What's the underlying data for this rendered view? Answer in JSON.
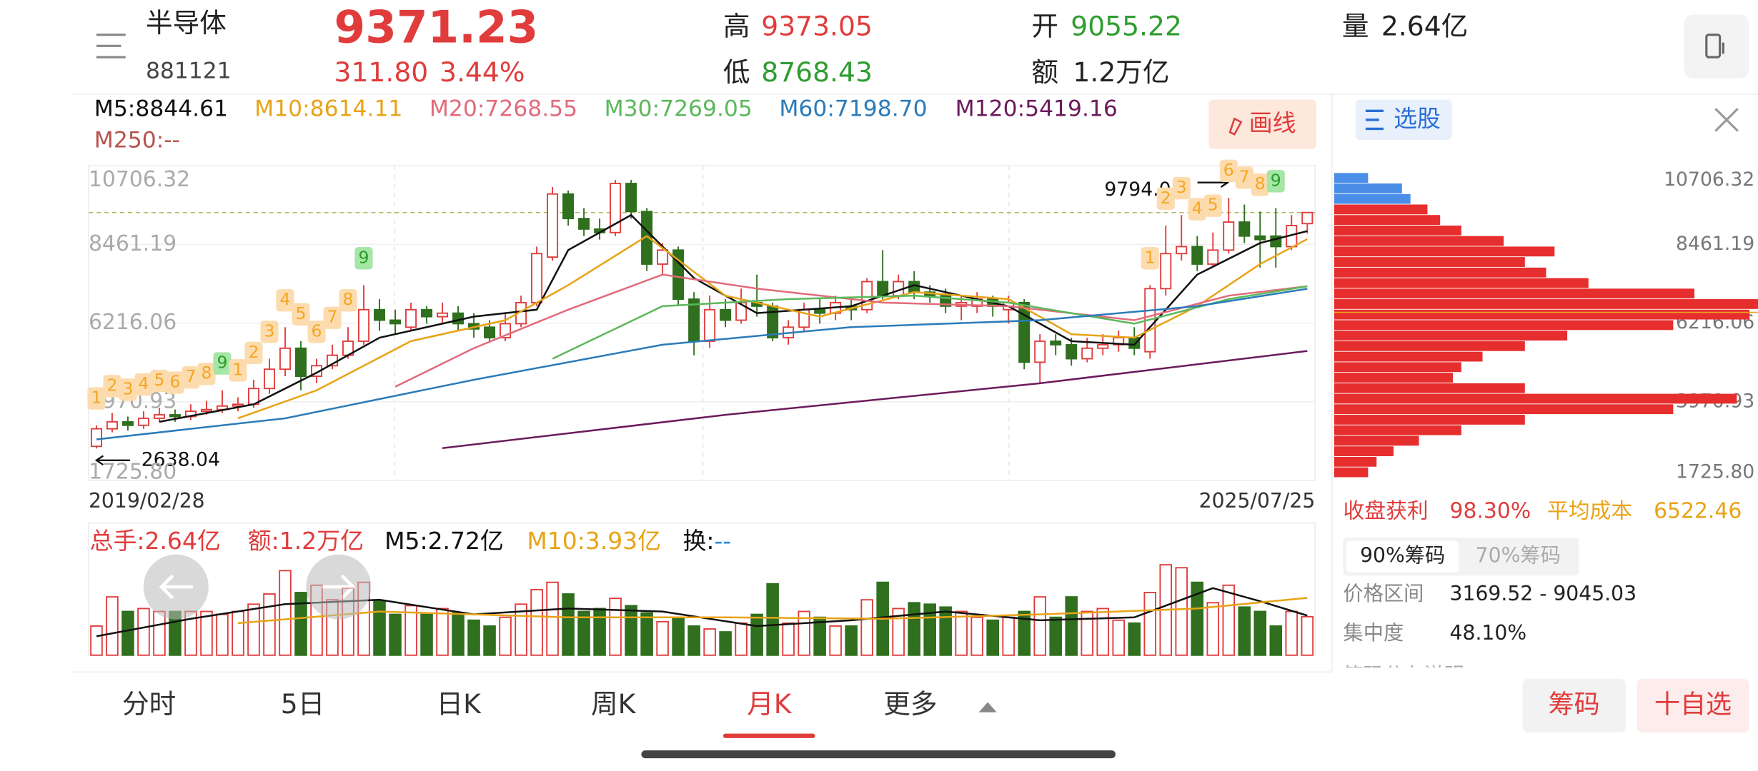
{
  "header": {
    "name": "半导体",
    "code": "881121",
    "price": 9371.23,
    "change": "311.80",
    "change_pct": "3.44%",
    "high_label": "高",
    "high": 9373.05,
    "low_label": "低",
    "low": 8768.43,
    "open_label": "开",
    "open": 9055.22,
    "amount_label": "额",
    "amount": "1.2万亿",
    "volume_label": "量",
    "volume": "2.64亿"
  },
  "toolbar": {
    "draw": "画线"
  },
  "chart_data": {
    "type": "candlestick",
    "categories": [
      "2019/02/28",
      null,
      null,
      null,
      null,
      null,
      null,
      null,
      null,
      null,
      null,
      null,
      null,
      null,
      null,
      null,
      null,
      null,
      null,
      null,
      null,
      null,
      null,
      null,
      null,
      null,
      null,
      null,
      null,
      null,
      null,
      null,
      null,
      null,
      null,
      null,
      null,
      null,
      null,
      null,
      null,
      null,
      null,
      null,
      null,
      null,
      null,
      null,
      null,
      null,
      null,
      null,
      null,
      null,
      null,
      null,
      null,
      null,
      null,
      null,
      null,
      null,
      null,
      null,
      null,
      null,
      null,
      null,
      null,
      null,
      null,
      null,
      null,
      null,
      null,
      null,
      null,
      "2025/07/25"
    ],
    "ylim": [
      1725.8,
      10706.32
    ],
    "yticks": [
      {
        "value": 1725.8,
        "label": "1725.80"
      },
      3970.93,
      6216.06,
      8461.19,
      10706.32
    ],
    "up_color": "#e03c3c",
    "down_color": "#2f6f1e",
    "candles": {
      "open": [
        2700,
        3200,
        3400,
        3300,
        3500,
        3600,
        3550,
        3700,
        3750,
        3850,
        3900,
        4350,
        4900,
        5500,
        4700,
        5000,
        5300,
        5700,
        6600,
        6300,
        6100,
        6600,
        6400,
        6500,
        6200,
        6100,
        5800,
        6200,
        6800,
        8100,
        9900,
        9200,
        8900,
        8800,
        10200,
        9400,
        7900,
        8300,
        6900,
        5700,
        6600,
        6300,
        6800,
        6700,
        5800,
        6100,
        6600,
        6500,
        6700,
        6600,
        7400,
        7000,
        7400,
        7100,
        7000,
        6700,
        6700,
        6900,
        6600,
        6800,
        5100,
        5700,
        5600,
        5200,
        5500,
        5600,
        5800,
        5400,
        7200,
        8200,
        8400,
        7900,
        8300,
        9100,
        8700,
        8700,
        8400,
        9055.22
      ],
      "close": [
        3200,
        3400,
        3300,
        3500,
        3600,
        3550,
        3700,
        3750,
        3850,
        3900,
        4350,
        4900,
        5500,
        4700,
        5000,
        5300,
        5700,
        6600,
        6300,
        6200,
        6600,
        6400,
        6500,
        6200,
        6050,
        5800,
        6200,
        6800,
        8200,
        9900,
        9200,
        8900,
        8800,
        10200,
        9400,
        7900,
        8300,
        6900,
        5700,
        6600,
        6300,
        6800,
        6700,
        5800,
        6100,
        6600,
        6500,
        6800,
        6600,
        7400,
        7000,
        7400,
        7100,
        7000,
        6700,
        6800,
        6900,
        6700,
        6800,
        5100,
        5700,
        5600,
        5200,
        5500,
        5600,
        5800,
        5500,
        7200,
        8200,
        8400,
        7900,
        8300,
        9100,
        8700,
        8600,
        8400,
        9000,
        9371.23
      ],
      "high": [
        3300,
        3650,
        3550,
        3700,
        3800,
        3750,
        3900,
        4000,
        4300,
        4100,
        4600,
        5200,
        6100,
        5700,
        5200,
        5600,
        6100,
        7300,
        6900,
        6600,
        6800,
        6700,
        6800,
        6700,
        6500,
        6300,
        6500,
        7000,
        8400,
        10100,
        10000,
        9500,
        9200,
        10300,
        10300,
        9500,
        8500,
        8400,
        7100,
        7000,
        6900,
        7200,
        7600,
        6800,
        6300,
        6800,
        6900,
        7000,
        6900,
        7500,
        8300,
        7600,
        7700,
        7300,
        7200,
        7000,
        7100,
        7000,
        7000,
        6900,
        5900,
        5900,
        5800,
        5800,
        5900,
        6000,
        6100,
        7300,
        9000,
        9300,
        8700,
        8800,
        9794.08,
        9600,
        9400,
        9500,
        9300,
        9373.05
      ],
      "low": [
        2638.04,
        3100,
        3150,
        3200,
        3400,
        3400,
        3450,
        3600,
        3650,
        3700,
        3800,
        4200,
        4700,
        4300,
        4500,
        4900,
        5200,
        5600,
        6000,
        5900,
        6000,
        6200,
        6200,
        6000,
        5800,
        5700,
        5700,
        6100,
        6700,
        8000,
        9000,
        8700,
        8600,
        8700,
        9200,
        7700,
        7600,
        6700,
        5300,
        5500,
        6100,
        6200,
        6400,
        5700,
        5600,
        6000,
        6200,
        6300,
        6300,
        6500,
        6900,
        6900,
        6900,
        6800,
        6500,
        6300,
        6500,
        6400,
        6200,
        4900,
        4500,
        5300,
        5000,
        5100,
        5300,
        5400,
        5300,
        5200,
        7000,
        8000,
        7700,
        7800,
        8200,
        8500,
        7800,
        7800,
        8300,
        8768.43
      ]
    },
    "td_labels": [
      "1",
      "2",
      "3",
      "4",
      "5",
      "6",
      "7",
      "8",
      "9",
      "1",
      "2",
      "3",
      "4",
      "5",
      "6",
      "7",
      "8",
      "9",
      null,
      null,
      null,
      null,
      null,
      null,
      null,
      null,
      null,
      null,
      null,
      null,
      null,
      null,
      null,
      null,
      null,
      null,
      null,
      null,
      null,
      null,
      null,
      null,
      null,
      null,
      null,
      null,
      null,
      null,
      null,
      null,
      null,
      null,
      null,
      null,
      null,
      null,
      null,
      null,
      null,
      null,
      null,
      null,
      null,
      null,
      null,
      null,
      null,
      "1",
      "2",
      "3",
      "4",
      "5",
      "6",
      "7",
      "8",
      "9",
      null,
      null
    ],
    "ma_lines": [
      {
        "label": "M5:8844.61",
        "color": "#111111",
        "x": [
          4,
          10,
          14,
          18,
          24,
          28,
          30,
          34,
          38,
          42,
          48,
          52,
          58,
          62,
          66,
          70,
          74,
          77
        ],
        "values": [
          3400,
          3900,
          4800,
          5800,
          6400,
          6600,
          8300,
          9300,
          7500,
          6500,
          6700,
          7300,
          6700,
          5700,
          5600,
          7600,
          8500,
          8844.61
        ]
      },
      {
        "label": "M10:8614.11",
        "color": "#e8a317",
        "x": [
          9,
          14,
          20,
          26,
          30,
          35,
          40,
          46,
          52,
          58,
          62,
          66,
          70,
          74,
          77
        ],
        "values": [
          3500,
          4300,
          5700,
          6300,
          7300,
          8700,
          7000,
          6400,
          7100,
          6900,
          5900,
          5800,
          6700,
          7900,
          8614.11
        ]
      },
      {
        "label": "M20:7268.55",
        "color": "#e26b7b",
        "x": [
          19,
          24,
          30,
          36,
          42,
          50,
          58,
          66,
          72,
          77
        ],
        "values": [
          4400,
          5500,
          6600,
          7600,
          7200,
          6800,
          6700,
          6300,
          7000,
          7268.55
        ]
      },
      {
        "label": "M30:7269.05",
        "color": "#5cb85c",
        "x": [
          29,
          36,
          44,
          52,
          58,
          66,
          72,
          77
        ],
        "values": [
          5200,
          6700,
          6900,
          7000,
          6800,
          6200,
          6900,
          7269.05
        ]
      },
      {
        "label": "M60:7198.70",
        "color": "#2b7bb9",
        "x": [
          0,
          12,
          24,
          36,
          48,
          60,
          70,
          77
        ],
        "values": [
          2900,
          3500,
          4600,
          5600,
          6100,
          6300,
          6700,
          7198.7
        ]
      },
      {
        "label": "M120:5419.16",
        "color": "#6b1b5c",
        "x": [
          22,
          40,
          60,
          77
        ],
        "values": [
          2650,
          3600,
          4500,
          5419.16
        ]
      }
    ],
    "ma_extra": {
      "label": "M250:--",
      "color": "#b85450"
    },
    "volume": {
      "ylim": [
        0,
        6.3
      ],
      "values": [
        2.0,
        4.0,
        3.0,
        3.2,
        3.0,
        3.0,
        3.0,
        3.0,
        2.8,
        3.0,
        3.5,
        4.2,
        5.8,
        4.3,
        4.8,
        3.8,
        4.6,
        5.0,
        3.7,
        2.8,
        3.4,
        2.8,
        3.2,
        2.9,
        2.4,
        2.0,
        2.6,
        3.5,
        4.5,
        5.0,
        4.2,
        3.0,
        3.2,
        3.9,
        3.4,
        2.9,
        2.3,
        2.6,
        2.0,
        1.8,
        1.6,
        2.2,
        2.8,
        4.9,
        2.2,
        3.0,
        2.6,
        2.0,
        2.0,
        3.8,
        5.0,
        3.2,
        3.6,
        3.5,
        3.3,
        3.0,
        2.6,
        2.4,
        2.6,
        3.0,
        4.0,
        2.6,
        4.0,
        3.0,
        3.2,
        2.4,
        2.2,
        4.3,
        6.2,
        6.0,
        5.0,
        3.6,
        4.8,
        3.3,
        3.0,
        2.0,
        3.0,
        2.64
      ],
      "legend": [
        {
          "text": "总手:2.64亿",
          "color": "#e03c3c"
        },
        {
          "text": "额:1.2万亿",
          "color": "#e03c3c"
        },
        {
          "text": "M5:2.72亿",
          "color": "#111111"
        },
        {
          "text": "M10:3.93亿",
          "color": "#e8a317"
        },
        {
          "text": "换:",
          "color": "#111111"
        },
        {
          "text": "--",
          "color": "#2a8ee0"
        }
      ],
      "ma_lines": [
        {
          "color": "#111111",
          "x": [
            0,
            6,
            12,
            18,
            24,
            30,
            36,
            42,
            48,
            54,
            60,
            66,
            71,
            74,
            77
          ],
          "values": [
            1.3,
            2.5,
            3.5,
            3.8,
            2.8,
            3.2,
            3.0,
            2.0,
            2.4,
            3.0,
            2.4,
            2.6,
            4.6,
            3.7,
            2.72
          ]
        },
        {
          "color": "#e8a317",
          "x": [
            9,
            18,
            30,
            40,
            50,
            60,
            70,
            77
          ],
          "values": [
            2.2,
            3.0,
            2.6,
            2.6,
            2.5,
            2.8,
            3.2,
            3.93
          ]
        }
      ]
    }
  },
  "chip": {
    "title": "选股",
    "profit_label": "收盘获利",
    "profit": "98.30%",
    "avg_label": "平均成本",
    "avg_cost": 6522.46,
    "tabs": [
      "90%筹码",
      "70%筹码"
    ],
    "range_label": "价格区间",
    "range": "3169.52 - 9045.03",
    "conc_label": "集中度",
    "concentration": "48.10%",
    "note": "筹码分布说明",
    "xlim": [
      0,
      100
    ],
    "color": "#e62e2e",
    "upper_color": "#4a8ee8",
    "bins": [
      1800,
      2100,
      2400,
      2700,
      3000,
      3300,
      3600,
      3900,
      4200,
      4500,
      4800,
      5100,
      5400,
      5700,
      6000,
      6300,
      6600,
      6900,
      7200,
      7500,
      7800,
      8100,
      8400,
      8700,
      9000,
      9300,
      9600,
      9900,
      10200,
      10500
    ],
    "values": [
      8,
      10,
      14,
      20,
      30,
      45,
      80,
      95,
      45,
      28,
      30,
      35,
      45,
      55,
      80,
      98,
      100,
      85,
      60,
      50,
      45,
      52,
      40,
      30,
      25,
      22,
      18,
      16,
      8
    ]
  },
  "tabs": [
    "分时",
    "5日",
    "日K",
    "周K",
    "月K",
    "更多"
  ],
  "active_tab": 4,
  "buttons": [
    "筹码",
    "十自选"
  ]
}
